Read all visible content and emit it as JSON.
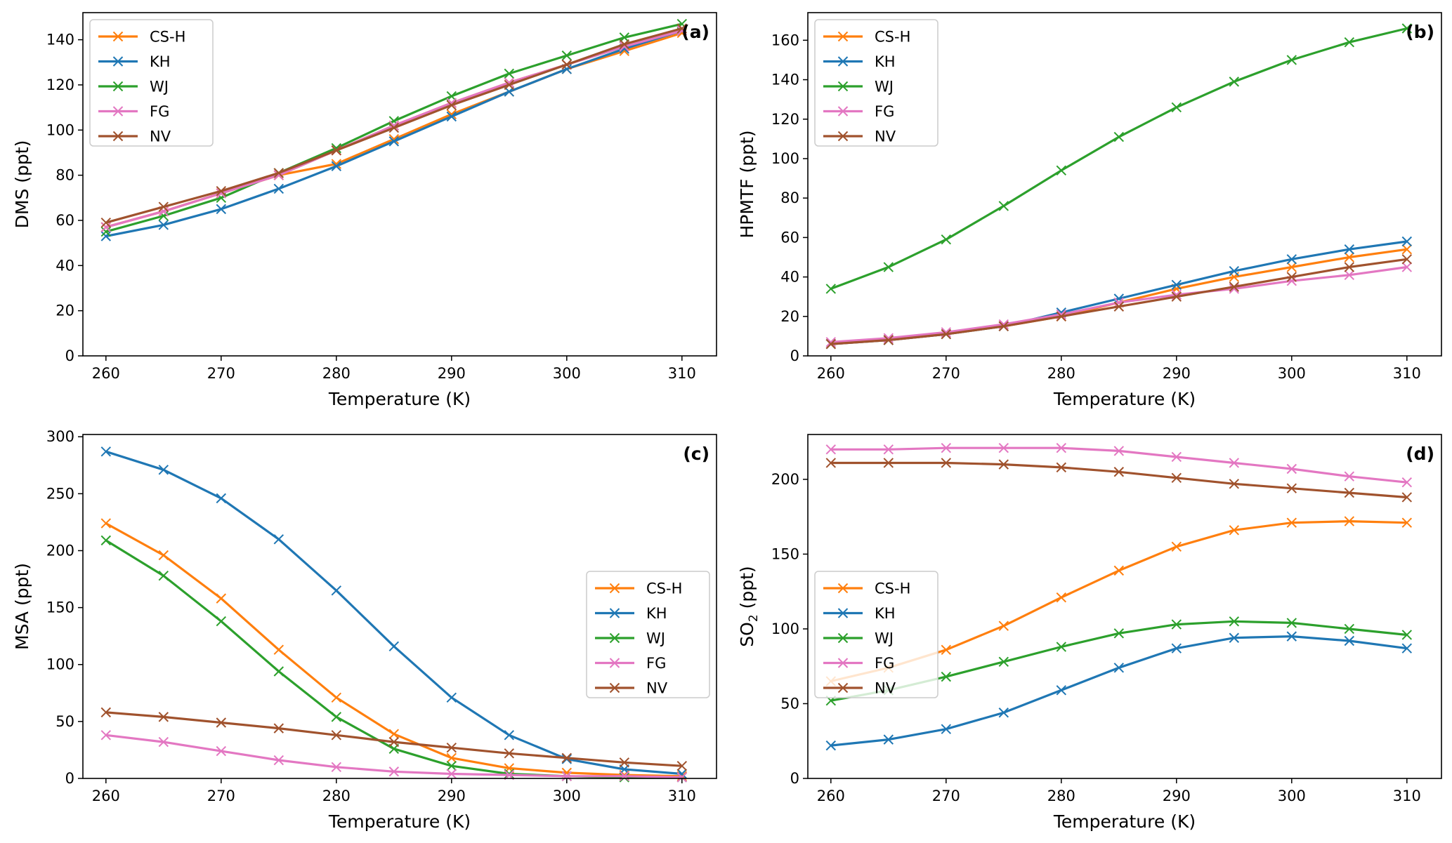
{
  "chart_data": [
    {
      "id": "a",
      "type": "line",
      "panel_label": "(a)",
      "xlabel": "Temperature (K)",
      "ylabel": "DMS (ppt)",
      "xlim": [
        258,
        313
      ],
      "ylim": [
        0,
        152
      ],
      "xticks": [
        260,
        270,
        280,
        290,
        300,
        310
      ],
      "yticks": [
        0,
        20,
        40,
        60,
        80,
        100,
        120,
        140
      ],
      "legend_position": "upper-left",
      "x": [
        260,
        265,
        270,
        275,
        280,
        285,
        290,
        295,
        300,
        305,
        310
      ],
      "series": [
        {
          "name": "CS-H",
          "color": "#ff7f0e",
          "values": [
            57,
            64,
            72,
            80,
            91,
            102,
            112,
            121,
            129,
            137,
            144
          ]
        },
        {
          "name": "KH",
          "color": "#1f77b4",
          "values": [
            53,
            58,
            65,
            74,
            84,
            95,
            106,
            117,
            127,
            136,
            144
          ]
        },
        {
          "name": "WJ",
          "color": "#2ca02c",
          "values": [
            55,
            62,
            70,
            81,
            92,
            104,
            115,
            125,
            133,
            141,
            147
          ]
        },
        {
          "name": "FG",
          "color": "#e377c2",
          "values": [
            57,
            64,
            72,
            80,
            91,
            102,
            112,
            121,
            129,
            137,
            144
          ]
        },
        {
          "name": "NV",
          "color": "#a0522d",
          "values": [
            59,
            66,
            73,
            81,
            91,
            101,
            111,
            120,
            129,
            138,
            145
          ]
        }
      ],
      "extra_lines": [
        {
          "name": "CS-H",
          "color": "#ff7f0e",
          "values": [
            57,
            64,
            72,
            80,
            85,
            96,
            107,
            117,
            127,
            135,
            143
          ]
        }
      ]
    },
    {
      "id": "b",
      "type": "line",
      "panel_label": "(b)",
      "xlabel": "Temperature (K)",
      "ylabel": "HPMTF (ppt)",
      "xlim": [
        258,
        313
      ],
      "ylim": [
        0,
        174
      ],
      "xticks": [
        260,
        270,
        280,
        290,
        300,
        310
      ],
      "yticks": [
        0,
        20,
        40,
        60,
        80,
        100,
        120,
        140,
        160
      ],
      "legend_position": "upper-left",
      "x": [
        260,
        265,
        270,
        275,
        280,
        285,
        290,
        295,
        300,
        305,
        310
      ],
      "series": [
        {
          "name": "CS-H",
          "color": "#ff7f0e",
          "values": [
            6,
            8,
            11,
            15,
            20,
            27,
            34,
            40,
            45,
            50,
            54
          ]
        },
        {
          "name": "KH",
          "color": "#1f77b4",
          "values": [
            6,
            8,
            11,
            15,
            22,
            29,
            36,
            43,
            49,
            54,
            58
          ]
        },
        {
          "name": "WJ",
          "color": "#2ca02c",
          "values": [
            34,
            45,
            59,
            76,
            94,
            111,
            126,
            139,
            150,
            159,
            166
          ]
        },
        {
          "name": "FG",
          "color": "#e377c2",
          "values": [
            7,
            9,
            12,
            16,
            21,
            27,
            31,
            34,
            38,
            41,
            45
          ]
        },
        {
          "name": "NV",
          "color": "#a0522d",
          "values": [
            6,
            8,
            11,
            15,
            20,
            25,
            30,
            35,
            40,
            45,
            49
          ]
        }
      ]
    },
    {
      "id": "c",
      "type": "line",
      "panel_label": "(c)",
      "xlabel": "Temperature (K)",
      "ylabel": "MSA (ppt)",
      "xlim": [
        258,
        313
      ],
      "ylim": [
        0,
        302
      ],
      "xticks": [
        260,
        270,
        280,
        290,
        300,
        310
      ],
      "yticks": [
        0,
        50,
        100,
        150,
        200,
        250,
        300
      ],
      "legend_position": "center-right",
      "x": [
        260,
        265,
        270,
        275,
        280,
        285,
        290,
        295,
        300,
        305,
        310
      ],
      "series": [
        {
          "name": "CS-H",
          "color": "#ff7f0e",
          "values": [
            224,
            196,
            158,
            113,
            71,
            39,
            18,
            9,
            5,
            3,
            2
          ]
        },
        {
          "name": "KH",
          "color": "#1f77b4",
          "values": [
            287,
            271,
            246,
            210,
            165,
            116,
            71,
            38,
            17,
            8,
            4
          ]
        },
        {
          "name": "WJ",
          "color": "#2ca02c",
          "values": [
            209,
            178,
            138,
            94,
            54,
            26,
            11,
            4,
            2,
            1,
            1
          ]
        },
        {
          "name": "FG",
          "color": "#e377c2",
          "values": [
            38,
            32,
            24,
            16,
            10,
            6,
            4,
            3,
            2,
            2,
            1
          ]
        },
        {
          "name": "NV",
          "color": "#a0522d",
          "values": [
            58,
            54,
            49,
            44,
            38,
            32,
            27,
            22,
            18,
            14,
            11
          ]
        }
      ]
    },
    {
      "id": "d",
      "type": "line",
      "panel_label": "(d)",
      "xlabel": "Temperature (K)",
      "ylabel": "SO",
      "ylabel_sub": "2",
      "ylabel_suffix": " (ppt)",
      "xlim": [
        258,
        313
      ],
      "ylim": [
        0,
        230
      ],
      "xticks": [
        260,
        270,
        280,
        290,
        300,
        310
      ],
      "yticks": [
        0,
        50,
        100,
        150,
        200
      ],
      "legend_position": "center-left",
      "x": [
        260,
        265,
        270,
        275,
        280,
        285,
        290,
        295,
        300,
        305,
        310
      ],
      "series": [
        {
          "name": "CS-H",
          "color": "#ff7f0e",
          "values": [
            65,
            74,
            86,
            102,
            121,
            139,
            155,
            166,
            171,
            172,
            171
          ]
        },
        {
          "name": "KH",
          "color": "#1f77b4",
          "values": [
            22,
            26,
            33,
            44,
            59,
            74,
            87,
            94,
            95,
            92,
            87
          ]
        },
        {
          "name": "WJ",
          "color": "#2ca02c",
          "values": [
            52,
            59,
            68,
            78,
            88,
            97,
            103,
            105,
            104,
            100,
            96
          ]
        },
        {
          "name": "FG",
          "color": "#e377c2",
          "values": [
            220,
            220,
            221,
            221,
            221,
            219,
            215,
            211,
            207,
            202,
            198
          ]
        },
        {
          "name": "NV",
          "color": "#a0522d",
          "values": [
            211,
            211,
            211,
            210,
            208,
            205,
            201,
            197,
            194,
            191,
            188
          ]
        }
      ]
    }
  ]
}
